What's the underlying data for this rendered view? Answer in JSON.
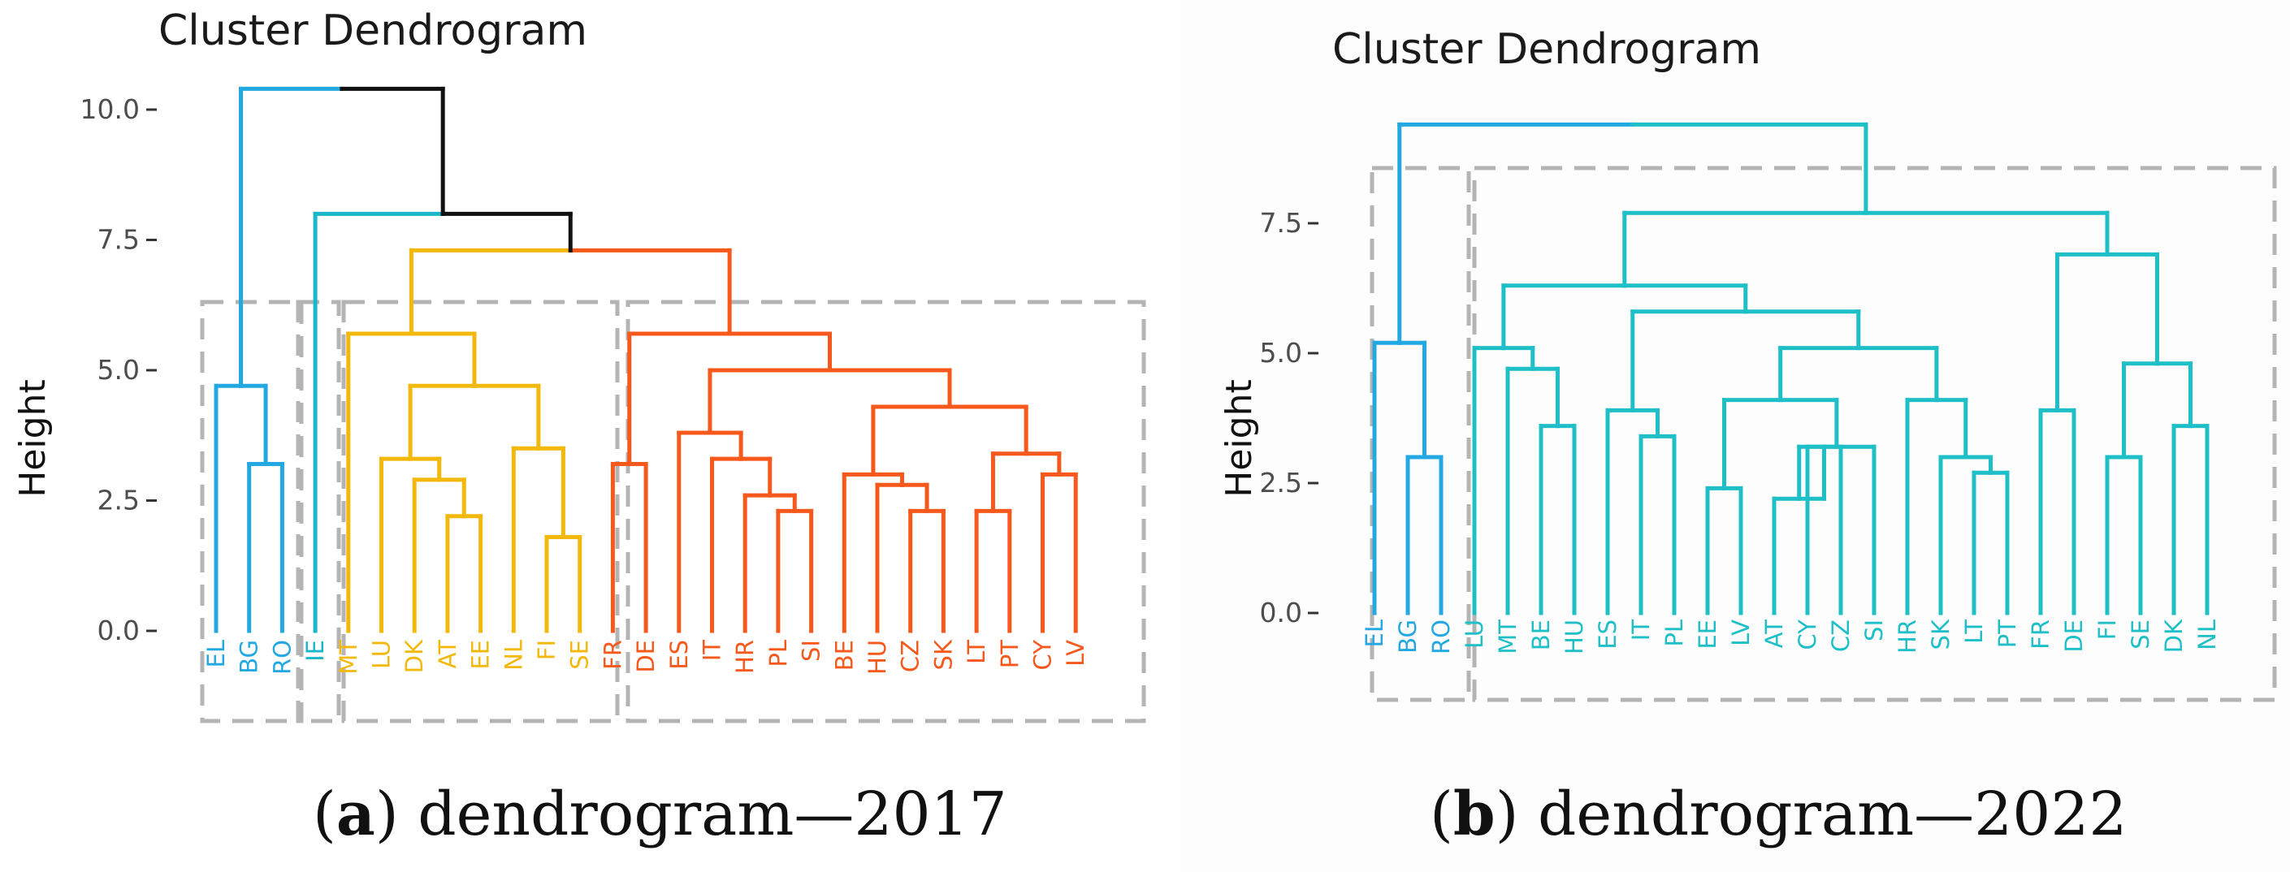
{
  "captions": [
    {
      "letter": "a",
      "text": "dendrogram—2017"
    },
    {
      "letter": "b",
      "text": "dendrogram—2022"
    }
  ],
  "chart_data": [
    {
      "type": "dendrogram",
      "title": "Cluster Dendrogram",
      "ylabel": "Height",
      "ylim": [
        0,
        10.5
      ],
      "yticks": [
        "0.0",
        "2.5",
        "5.0",
        "7.5",
        "10.0"
      ],
      "grid": false,
      "leaves": [
        "EL",
        "BG",
        "RO",
        "IE",
        "MT",
        "LU",
        "DK",
        "AT",
        "EE",
        "NL",
        "FI",
        "SE",
        "FR",
        "DE",
        "ES",
        "IT",
        "HR",
        "PL",
        "SI",
        "BE",
        "HU",
        "CZ",
        "SK",
        "LT",
        "PT",
        "CY",
        "LV"
      ],
      "leaf_groups": [
        0,
        0,
        0,
        1,
        2,
        2,
        2,
        2,
        2,
        2,
        2,
        2,
        3,
        3,
        3,
        3,
        3,
        3,
        3,
        3,
        3,
        3,
        3,
        3,
        3,
        3,
        3
      ],
      "group_colors": [
        "#23a8e1",
        "#18b7c9",
        "#f2b90c",
        "#f7581b"
      ],
      "root_color": "#111111",
      "merges": [
        [
          -2,
          -3,
          3.2
        ],
        [
          -8,
          -9,
          2.2
        ],
        [
          -7,
          2,
          2.9
        ],
        [
          -6,
          3,
          3.3
        ],
        [
          -11,
          -12,
          1.8
        ],
        [
          -10,
          5,
          3.5
        ],
        [
          4,
          6,
          4.7
        ],
        [
          -5,
          7,
          5.7
        ],
        [
          -18,
          -19,
          2.3
        ],
        [
          -17,
          9,
          2.6
        ],
        [
          -16,
          10,
          3.3
        ],
        [
          -15,
          11,
          3.8
        ],
        [
          -22,
          -23,
          2.3
        ],
        [
          -21,
          13,
          2.8
        ],
        [
          -20,
          14,
          3.0
        ],
        [
          -24,
          -25,
          2.3
        ],
        [
          -26,
          -27,
          3.0
        ],
        [
          16,
          17,
          3.4
        ],
        [
          15,
          18,
          4.3
        ],
        [
          12,
          19,
          5.0
        ],
        [
          -14,
          -13,
          3.2
        ],
        [
          21,
          20,
          5.7
        ],
        [
          8,
          22,
          7.3
        ],
        [
          -4,
          23,
          8.0
        ],
        [
          -1,
          1,
          4.7
        ],
        [
          25,
          24,
          10.4
        ]
      ],
      "clusters_boxed": [
        [
          "EL",
          "BG",
          "RO"
        ],
        [
          "IE"
        ],
        [
          "MT",
          "LU",
          "DK",
          "AT",
          "EE",
          "NL",
          "FI",
          "SE"
        ],
        [
          "FR",
          "DE",
          "ES",
          "IT",
          "HR",
          "PL",
          "SI",
          "BE",
          "HU",
          "CZ",
          "SK",
          "LT",
          "PT",
          "CY",
          "LV"
        ]
      ]
    },
    {
      "type": "dendrogram",
      "title": "Cluster Dendrogram",
      "ylabel": "Height",
      "ylim": [
        0,
        9.3
      ],
      "yticks": [
        "0.0",
        "2.5",
        "5.0",
        "7.5"
      ],
      "grid": false,
      "leaves": [
        "EL",
        "BG",
        "RO",
        "LU",
        "MT",
        "BE",
        "HU",
        "ES",
        "IT",
        "PL",
        "EE",
        "LV",
        "AT",
        "CY",
        "CZ",
        "SI",
        "HR",
        "SK",
        "LT",
        "PT",
        "FR",
        "DE",
        "FI",
        "SE",
        "DK",
        "NL"
      ],
      "leaf_groups": [
        0,
        0,
        0,
        1,
        1,
        1,
        1,
        1,
        1,
        1,
        1,
        1,
        1,
        1,
        1,
        1,
        1,
        1,
        1,
        1,
        1,
        1,
        1,
        1,
        1,
        1
      ],
      "group_colors": [
        "#23a8e1",
        "#1fbfc8"
      ],
      "root_color": "#1fbfc8",
      "merges": [
        [
          -2,
          -3,
          3.0
        ],
        [
          -1,
          1,
          5.2
        ],
        [
          -6,
          -7,
          3.6
        ],
        [
          -5,
          3,
          4.7
        ],
        [
          -4,
          4,
          5.1
        ],
        [
          -9,
          -10,
          3.4
        ],
        [
          -8,
          6,
          3.9
        ],
        [
          -14,
          -15,
          3.2
        ],
        [
          -13,
          8,
          2.2
        ],
        [
          -16,
          9,
          3.2
        ],
        [
          -11,
          -12,
          2.4
        ],
        [
          11,
          10,
          4.1
        ],
        [
          -19,
          -20,
          2.7
        ],
        [
          -18,
          13,
          3.0
        ],
        [
          -17,
          14,
          4.1
        ],
        [
          12,
          15,
          5.1
        ],
        [
          7,
          16,
          5.8
        ],
        [
          5,
          17,
          6.3
        ],
        [
          -21,
          -22,
          3.9
        ],
        [
          -23,
          -24,
          3.0
        ],
        [
          -25,
          -26,
          3.6
        ],
        [
          20,
          21,
          4.8
        ],
        [
          19,
          22,
          6.9
        ],
        [
          18,
          23,
          7.7
        ],
        [
          2,
          24,
          9.4
        ]
      ],
      "clusters_boxed": [
        [
          "EL",
          "BG",
          "RO"
        ],
        [
          "LU",
          "MT",
          "BE",
          "HU",
          "ES",
          "IT",
          "PL",
          "EE",
          "LV",
          "AT",
          "CY",
          "CZ",
          "SI",
          "HR",
          "SK",
          "LT",
          "PT",
          "FR",
          "DE",
          "FI",
          "SE",
          "DK",
          "NL"
        ]
      ]
    }
  ]
}
